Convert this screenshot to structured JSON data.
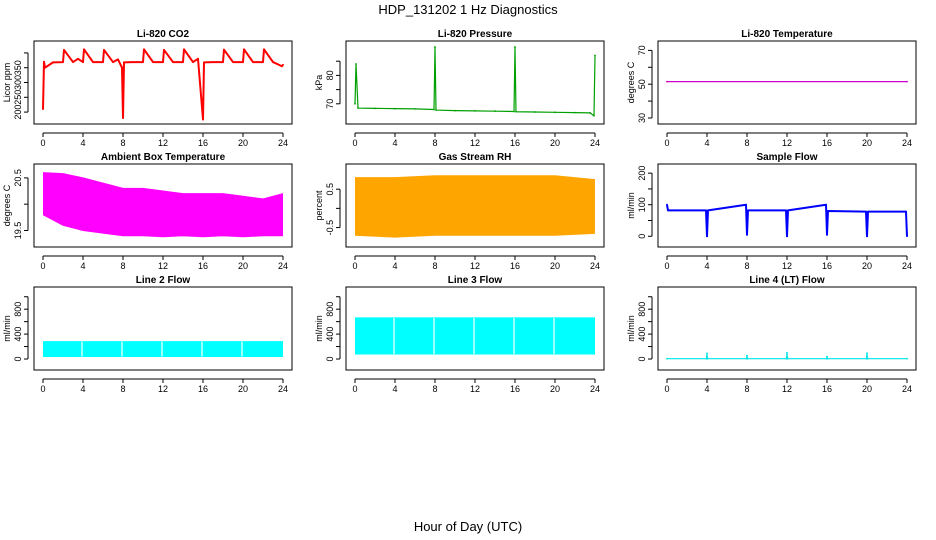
{
  "figure": {
    "title": "HDP_131202  1 Hz Diagnostics",
    "xlabel": "Hour of Day (UTC)"
  },
  "chart_data": [
    {
      "id": "co2",
      "type": "line",
      "title": "Li-820 CO2",
      "ylabel": "Licor ppm",
      "color": "#ff0000",
      "xlim": [
        0,
        24
      ],
      "ylim": [
        180,
        420
      ],
      "xticks": [
        0,
        4,
        8,
        12,
        16,
        20,
        24
      ],
      "yticks": [
        200,
        250,
        300,
        350,
        400
      ],
      "ytick_labels": [
        "200",
        "250",
        "300",
        "350",
        ""
      ],
      "x": [
        0,
        0.1,
        0.2,
        1,
        2,
        2.1,
        3,
        3.5,
        4,
        4.1,
        5,
        6,
        6.1,
        7,
        7.5,
        7.9,
        8,
        8.1,
        9,
        10,
        10.1,
        11,
        12,
        12.1,
        13,
        14,
        14.1,
        15,
        15.5,
        16,
        16.1,
        17,
        18,
        18.1,
        19,
        20,
        20.1,
        21,
        22,
        22.1,
        23,
        23.9,
        24
      ],
      "y": [
        210,
        370,
        350,
        368,
        369,
        410,
        369,
        380,
        369,
        412,
        369,
        369,
        410,
        369,
        378,
        350,
        180,
        368,
        369,
        369,
        412,
        369,
        369,
        410,
        369,
        369,
        412,
        369,
        380,
        175,
        368,
        369,
        369,
        411,
        369,
        369,
        412,
        369,
        369,
        412,
        369,
        355,
        360
      ]
    },
    {
      "id": "pressure",
      "type": "line",
      "title": "Li-820 Pressure",
      "ylabel": "kPa",
      "color": "#00a000",
      "xlim": [
        0,
        24
      ],
      "ylim": [
        65,
        90
      ],
      "xticks": [
        0,
        4,
        8,
        12,
        16,
        20,
        24
      ],
      "yticks": [
        70,
        75,
        80,
        85
      ],
      "ytick_labels": [
        "70",
        "",
        "80",
        ""
      ],
      "x": [
        0,
        0.1,
        0.3,
        2,
        4,
        6,
        7.9,
        8,
        8.1,
        10,
        12,
        14,
        15.9,
        16,
        16.1,
        18,
        20,
        22,
        23.5,
        23.9,
        24
      ],
      "y": [
        70,
        84,
        68.5,
        68.4,
        68.3,
        68.2,
        68,
        90,
        67.8,
        67.6,
        67.5,
        67.4,
        67.3,
        90,
        67.2,
        67.1,
        67,
        66.9,
        66.8,
        65.8,
        87
      ]
    },
    {
      "id": "li820temp",
      "type": "line",
      "title": "Li-820 Temperature",
      "ylabel": "degrees C",
      "color": "#cc00cc",
      "xlim": [
        0,
        24
      ],
      "ylim": [
        30,
        72
      ],
      "xticks": [
        0,
        4,
        8,
        12,
        16,
        20,
        24
      ],
      "yticks": [
        30,
        40,
        50,
        60,
        70
      ],
      "ytick_labels": [
        "30",
        "",
        "50",
        "",
        "70"
      ],
      "x": [
        0,
        24
      ],
      "y": [
        51.5,
        51.5
      ]
    },
    {
      "id": "boxtemp",
      "type": "band",
      "title": "Ambient Box Temperature",
      "ylabel": "degrees C",
      "color": "#ff00ff",
      "xlim": [
        0,
        24
      ],
      "ylim": [
        19.3,
        20.65
      ],
      "xticks": [
        0,
        4,
        8,
        12,
        16,
        20,
        24
      ],
      "yticks": [
        19.5,
        20.0,
        20.5
      ],
      "ytick_labels": [
        "19.5",
        "",
        "20.5"
      ],
      "x": [
        0,
        2,
        4,
        6,
        8,
        10,
        12,
        14,
        16,
        18,
        20,
        22,
        24
      ],
      "lower": [
        19.8,
        19.6,
        19.5,
        19.45,
        19.4,
        19.4,
        19.38,
        19.4,
        19.38,
        19.4,
        19.38,
        19.4,
        19.4
      ],
      "upper": [
        20.6,
        20.58,
        20.5,
        20.4,
        20.3,
        20.3,
        20.25,
        20.2,
        20.2,
        20.2,
        20.15,
        20.1,
        20.2
      ]
    },
    {
      "id": "rh",
      "type": "band",
      "title": "Gas Stream RH",
      "ylabel": "percent",
      "color": "#ffa500",
      "xlim": [
        0,
        24
      ],
      "ylim": [
        -0.85,
        1.0
      ],
      "xticks": [
        0,
        4,
        8,
        12,
        16,
        20,
        24
      ],
      "yticks": [
        -0.5,
        0.0,
        0.5
      ],
      "ytick_labels": [
        "-0.5",
        "",
        "0.5"
      ],
      "x": [
        0,
        4,
        8,
        12,
        16,
        20,
        24
      ],
      "lower": [
        -0.7,
        -0.75,
        -0.7,
        -0.7,
        -0.7,
        -0.7,
        -0.65
      ],
      "upper": [
        0.8,
        0.8,
        0.85,
        0.85,
        0.85,
        0.85,
        0.75
      ]
    },
    {
      "id": "sampleflow",
      "type": "line",
      "title": "Sample Flow",
      "ylabel": "ml/min",
      "color": "#0000ff",
      "xlim": [
        0,
        24
      ],
      "ylim": [
        -15,
        210
      ],
      "xticks": [
        0,
        4,
        8,
        12,
        16,
        20,
        24
      ],
      "yticks": [
        0,
        50,
        100,
        150,
        200
      ],
      "ytick_labels": [
        "0",
        "",
        "100",
        "",
        "200"
      ],
      "x": [
        0,
        0.1,
        3.9,
        4,
        4.1,
        7.9,
        8,
        8.1,
        11.9,
        12,
        12.1,
        15.9,
        16,
        16.1,
        19.9,
        20,
        20.1,
        23.9,
        24
      ],
      "y": [
        100,
        82,
        82,
        0,
        82,
        100,
        5,
        82,
        82,
        0,
        82,
        100,
        5,
        80,
        78,
        0,
        78,
        78,
        0
      ]
    },
    {
      "id": "line2",
      "type": "band",
      "title": "Line 2 Flow",
      "ylabel": "ml/min",
      "color": "#00ffff",
      "xlim": [
        0,
        24
      ],
      "ylim": [
        -80,
        1060
      ],
      "xticks": [
        0,
        4,
        8,
        12,
        16,
        20,
        24
      ],
      "yticks": [
        0,
        200,
        400,
        600,
        800,
        1000
      ],
      "ytick_labels": [
        "0",
        "",
        "400",
        "",
        "800",
        ""
      ],
      "x": [
        0,
        24
      ],
      "lower": [
        40,
        40
      ],
      "upper": [
        280,
        280
      ]
    },
    {
      "id": "line3",
      "type": "band",
      "title": "Line 3 Flow",
      "ylabel": "ml/min",
      "color": "#00ffff",
      "xlim": [
        0,
        24
      ],
      "ylim": [
        -80,
        1060
      ],
      "xticks": [
        0,
        4,
        8,
        12,
        16,
        20,
        24
      ],
      "yticks": [
        0,
        200,
        400,
        600,
        800,
        1000
      ],
      "ytick_labels": [
        "0",
        "",
        "400",
        "",
        "800",
        ""
      ],
      "x": [
        0,
        24
      ],
      "lower": [
        80,
        80
      ],
      "upper": [
        660,
        660
      ]
    },
    {
      "id": "line4",
      "type": "line",
      "title": "Line 4 (LT) Flow",
      "ylabel": "ml/min",
      "color": "#00e5e5",
      "xlim": [
        0,
        24
      ],
      "ylim": [
        -80,
        1060
      ],
      "xticks": [
        0,
        4,
        8,
        12,
        16,
        20,
        24
      ],
      "yticks": [
        0,
        200,
        400,
        600,
        800,
        1000
      ],
      "ytick_labels": [
        "0",
        "",
        "400",
        "",
        "800",
        ""
      ],
      "x": [
        0,
        3.95,
        4,
        4.05,
        7.95,
        8,
        8.05,
        11.95,
        12,
        12.05,
        15.95,
        16,
        16.05,
        19.95,
        20,
        20.05,
        24
      ],
      "y": [
        5,
        5,
        90,
        5,
        5,
        55,
        5,
        5,
        100,
        5,
        5,
        40,
        5,
        5,
        95,
        5,
        5
      ]
    }
  ]
}
